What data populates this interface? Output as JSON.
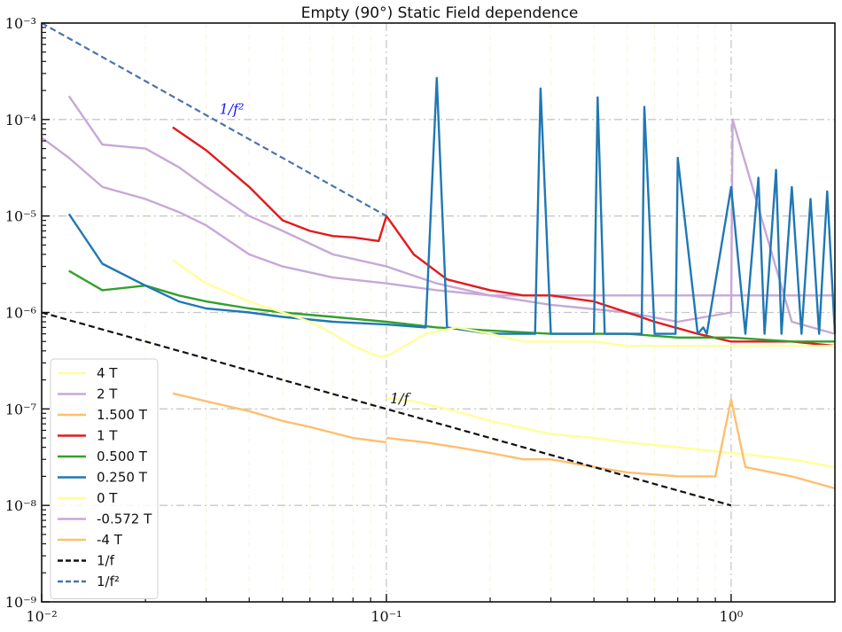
{
  "chart_data": {
    "type": "line",
    "title": "Empty (90°) Static Field dependence",
    "xscale": "log",
    "yscale": "log",
    "xlim": [
      0.01,
      2.0
    ],
    "ylim": [
      1e-09,
      0.001
    ],
    "x_major_ticks": [
      0.01,
      0.1,
      1
    ],
    "x_tick_labels": [
      "10⁻²",
      "10⁻¹",
      "10⁰"
    ],
    "y_major_ticks": [
      1e-09,
      1e-08,
      1e-07,
      1e-06,
      1e-05,
      0.0001,
      0.001
    ],
    "y_tick_labels": [
      "10⁻⁹",
      "10⁻⁸",
      "10⁻⁷",
      "10⁻⁶",
      "10⁻⁵",
      "10⁻⁴",
      "10⁻³"
    ],
    "grid": true,
    "legend_position": "lower-left",
    "series": [
      {
        "name": "4 T",
        "color": "#ffff99",
        "x": [
          0.024,
          0.03,
          0.04,
          0.05,
          0.06,
          0.07,
          0.08,
          0.095,
          0.1,
          0.13,
          0.16,
          0.2,
          0.25,
          0.3,
          0.4,
          0.5,
          0.7,
          1.0,
          1.5,
          2.0
        ],
        "y": [
          3.5e-06,
          2e-06,
          1.3e-06,
          1e-06,
          8e-07,
          6e-07,
          4.5e-07,
          3.5e-07,
          3.5e-07,
          6e-07,
          7e-07,
          6e-07,
          5e-07,
          5e-07,
          5e-07,
          4.5e-07,
          4.5e-07,
          4.5e-07,
          4.5e-07,
          4.5e-07
        ]
      },
      {
        "name": "2 T",
        "color": "#c7a8d6",
        "x": [
          0.012,
          0.015,
          0.02,
          0.025,
          0.03,
          0.04,
          0.05,
          0.07,
          0.1,
          0.14,
          0.2,
          0.3,
          0.5,
          0.7,
          1.0,
          1.5,
          2.0
        ],
        "y": [
          0.000175,
          5.5e-05,
          5e-05,
          3.2e-05,
          2e-05,
          1e-05,
          7e-06,
          4e-06,
          3e-06,
          2e-06,
          1.5e-06,
          1.5e-06,
          1.5e-06,
          1.5e-06,
          1.5e-06,
          1.5e-06,
          1.5e-06
        ]
      },
      {
        "name": "1.500 T",
        "color": "#fdbf6f",
        "x": [
          0.024,
          0.03,
          0.04,
          0.05,
          0.06,
          0.08,
          0.1
        ],
        "y": [
          1.45e-07,
          1.2e-07,
          9.5e-08,
          7.5e-08,
          6.5e-08,
          5e-08,
          4.5e-08
        ]
      },
      {
        "name": "1 T",
        "color": "#e31a1c",
        "x": [
          0.024,
          0.03,
          0.04,
          0.05,
          0.06,
          0.07,
          0.08,
          0.095,
          0.1,
          0.12,
          0.15,
          0.2,
          0.25,
          0.3,
          0.4,
          0.5,
          0.6,
          0.8,
          1.0,
          1.5,
          2.0
        ],
        "y": [
          8.3e-05,
          4.8e-05,
          2e-05,
          9e-06,
          7e-06,
          6.2e-06,
          6e-06,
          5.5e-06,
          1e-05,
          4e-06,
          2.2e-06,
          1.7e-06,
          1.5e-06,
          1.5e-06,
          1.3e-06,
          1e-06,
          8e-07,
          6e-07,
          5e-07,
          5e-07,
          4.5e-07
        ]
      },
      {
        "name": "0.500 T",
        "color": "#33a02c",
        "x": [
          0.012,
          0.015,
          0.02,
          0.025,
          0.03,
          0.04,
          0.05,
          0.07,
          0.1,
          0.14,
          0.2,
          0.3,
          0.5,
          0.7,
          1.0,
          1.5,
          2.0
        ],
        "y": [
          2.7e-06,
          1.7e-06,
          1.9e-06,
          1.5e-06,
          1.3e-06,
          1.1e-06,
          1e-06,
          9e-07,
          8e-07,
          7e-07,
          6.5e-07,
          6e-07,
          6e-07,
          5.5e-07,
          5.5e-07,
          5e-07,
          5e-07
        ]
      },
      {
        "name": "0.250 T",
        "color": "#1f78b4",
        "x": [
          0.012,
          0.015,
          0.02,
          0.025,
          0.03,
          0.04,
          0.05,
          0.07,
          0.1,
          0.13,
          0.14,
          0.15,
          0.2,
          0.27,
          0.28,
          0.3,
          0.4,
          0.41,
          0.43,
          0.55,
          0.56,
          0.6,
          0.69,
          0.7,
          0.8,
          0.83,
          0.85,
          1.0,
          1.1,
          1.2,
          1.25,
          1.35,
          1.4,
          1.5,
          1.6,
          1.7,
          1.8,
          1.9,
          2.0
        ],
        "y": [
          1.05e-05,
          3.2e-06,
          1.9e-06,
          1.3e-06,
          1.1e-06,
          1e-06,
          9e-07,
          8e-07,
          7.5e-07,
          7e-07,
          0.00027,
          7e-07,
          6e-07,
          6e-07,
          0.00021,
          6e-07,
          6e-07,
          0.00017,
          6e-07,
          6e-07,
          0.000135,
          6e-07,
          6e-07,
          4e-05,
          6e-07,
          7e-07,
          6e-07,
          2e-05,
          6e-07,
          2.5e-05,
          6e-07,
          3e-05,
          6e-07,
          2e-05,
          6e-07,
          1.5e-05,
          6e-07,
          1.8e-05,
          6e-07
        ]
      },
      {
        "name": "0 T",
        "color": "#ffff99",
        "x": [
          0.1,
          0.12,
          0.15,
          0.2,
          0.3,
          0.4,
          0.5,
          0.7,
          1.0,
          1.5,
          2.0
        ],
        "y": [
          1.3e-07,
          1.2e-07,
          1e-07,
          7.5e-08,
          5.5e-08,
          5e-08,
          4.5e-08,
          4e-08,
          3.5e-08,
          3e-08,
          2.5e-08
        ]
      },
      {
        "name": "-0.572 T",
        "color": "#c7a8d6",
        "x": [
          0.01,
          0.012,
          0.015,
          0.02,
          0.025,
          0.03,
          0.04,
          0.05,
          0.07,
          0.1,
          0.14,
          0.2,
          0.3,
          0.5,
          0.7,
          1.0,
          1.01,
          1.5,
          2.0
        ],
        "y": [
          6.5e-05,
          4e-05,
          2e-05,
          1.5e-05,
          1.1e-05,
          8e-06,
          4e-06,
          3e-06,
          2.3e-06,
          2e-06,
          1.7e-06,
          1.5e-06,
          1.2e-06,
          1e-06,
          8e-07,
          1e-06,
          0.0001,
          8e-07,
          6e-07
        ]
      },
      {
        "name": "-4 T",
        "color": "#fdbf6f",
        "x": [
          0.1,
          0.13,
          0.16,
          0.2,
          0.25,
          0.3,
          0.4,
          0.5,
          0.7,
          0.9,
          1.0,
          1.1,
          1.5,
          2.0
        ],
        "y": [
          5e-08,
          4.5e-08,
          4e-08,
          3.5e-08,
          3e-08,
          3e-08,
          2.5e-08,
          2.2e-08,
          2e-08,
          2e-08,
          1.25e-07,
          2.5e-08,
          2e-08,
          1.5e-08
        ]
      },
      {
        "name": "1/f",
        "color": "#111111",
        "dash": "dashed",
        "x": [
          0.01,
          1.0
        ],
        "y": [
          1e-06,
          1e-08
        ]
      },
      {
        "name": "1/f²",
        "color": "#4c72b0",
        "dash": "dashed",
        "x": [
          0.01,
          0.1
        ],
        "y": [
          0.001,
          1e-05
        ]
      }
    ],
    "annotations": [
      {
        "text": "1/f²",
        "x": 0.032,
        "y": 0.00011,
        "color": "#1a1aff"
      },
      {
        "text": "1/f",
        "x": 0.1,
        "y": 1.1e-07,
        "color": "#111111"
      }
    ]
  }
}
